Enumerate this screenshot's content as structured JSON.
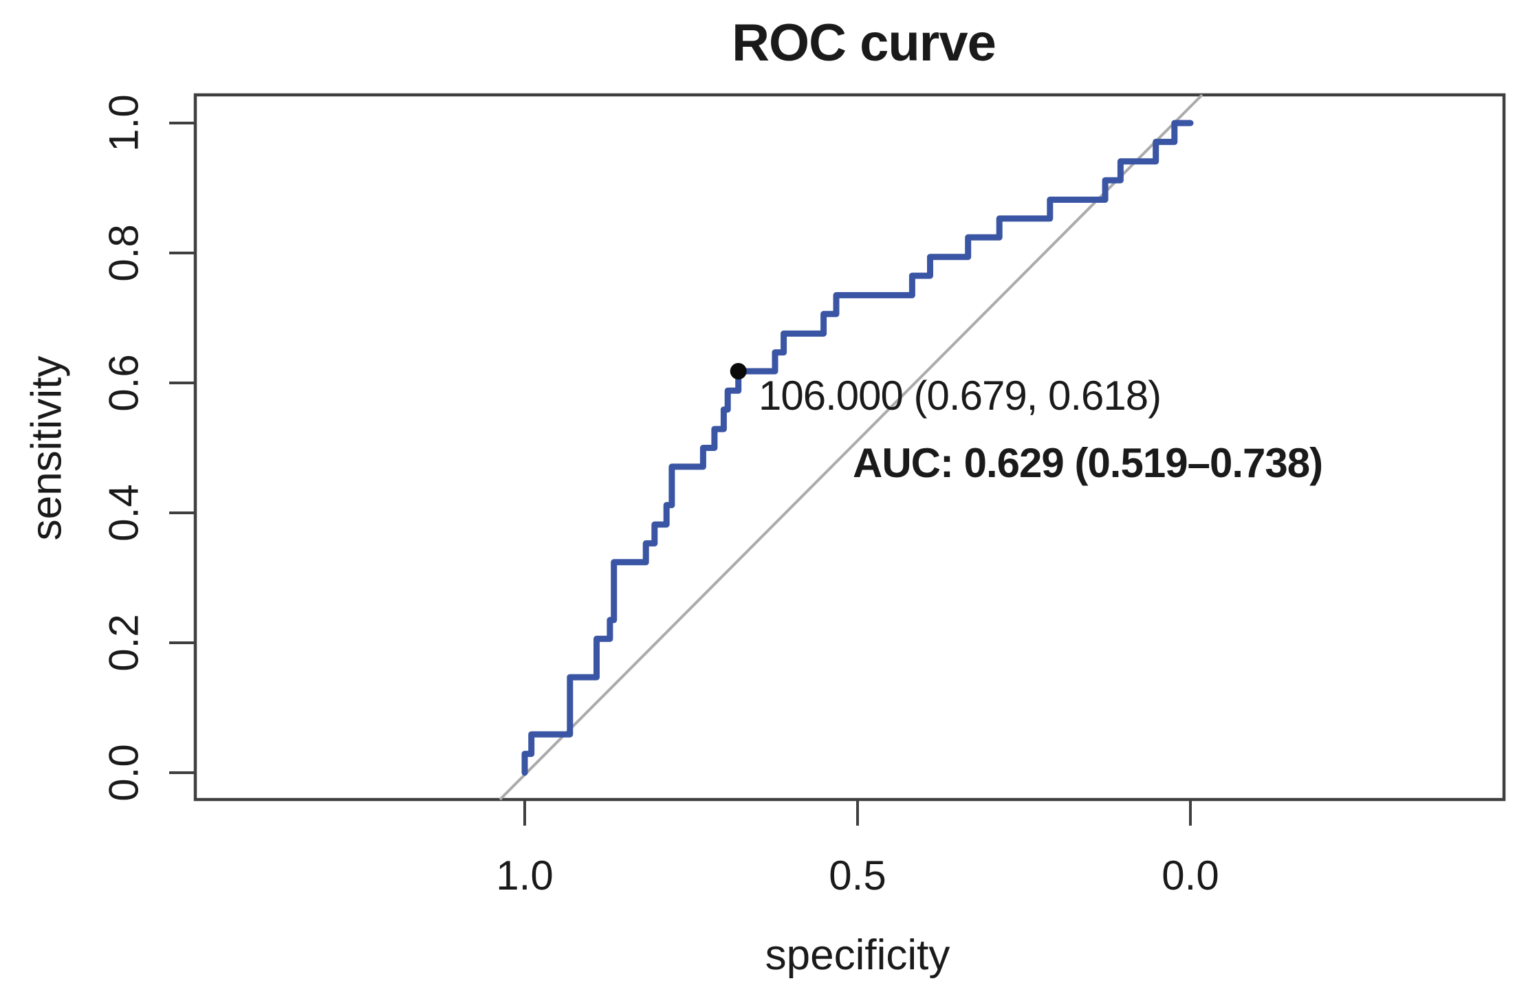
{
  "chart_data": {
    "type": "line",
    "subtype": "roc-step-curve",
    "title": "ROC curve",
    "xlabel": "specificity",
    "ylabel": "sensitivity",
    "x_axis": {
      "label": "specificity",
      "tick_labels": [
        "1.0",
        "0.5",
        "0.0"
      ],
      "tick_values": [
        1.0,
        0.5,
        0.0
      ],
      "range": [
        1.0,
        0.0
      ],
      "reversed": true
    },
    "y_axis": {
      "label": "sensitivity",
      "tick_labels": [
        "0.0",
        "0.2",
        "0.4",
        "0.6",
        "0.8",
        "1.0"
      ],
      "tick_values": [
        0.0,
        0.2,
        0.4,
        0.6,
        0.8,
        1.0
      ],
      "range": [
        0.0,
        1.0
      ]
    },
    "grid": false,
    "diagonal_reference_line": true,
    "series": [
      {
        "name": "ROC curve",
        "points_specificity_sensitivity": [
          [
            1.0,
            0.0
          ],
          [
            1.0,
            0.029
          ],
          [
            0.99,
            0.029
          ],
          [
            0.99,
            0.059
          ],
          [
            0.932,
            0.059
          ],
          [
            0.932,
            0.147
          ],
          [
            0.892,
            0.147
          ],
          [
            0.892,
            0.206
          ],
          [
            0.872,
            0.206
          ],
          [
            0.872,
            0.235
          ],
          [
            0.866,
            0.235
          ],
          [
            0.866,
            0.324
          ],
          [
            0.818,
            0.324
          ],
          [
            0.818,
            0.353
          ],
          [
            0.805,
            0.353
          ],
          [
            0.805,
            0.382
          ],
          [
            0.787,
            0.382
          ],
          [
            0.787,
            0.412
          ],
          [
            0.779,
            0.412
          ],
          [
            0.779,
            0.471
          ],
          [
            0.732,
            0.471
          ],
          [
            0.732,
            0.5
          ],
          [
            0.715,
            0.5
          ],
          [
            0.715,
            0.529
          ],
          [
            0.701,
            0.529
          ],
          [
            0.701,
            0.559
          ],
          [
            0.695,
            0.559
          ],
          [
            0.695,
            0.588
          ],
          [
            0.679,
            0.588
          ],
          [
            0.679,
            0.618
          ],
          [
            0.624,
            0.618
          ],
          [
            0.624,
            0.647
          ],
          [
            0.611,
            0.647
          ],
          [
            0.611,
            0.676
          ],
          [
            0.551,
            0.676
          ],
          [
            0.551,
            0.706
          ],
          [
            0.532,
            0.706
          ],
          [
            0.532,
            0.735
          ],
          [
            0.418,
            0.735
          ],
          [
            0.418,
            0.765
          ],
          [
            0.391,
            0.765
          ],
          [
            0.391,
            0.794
          ],
          [
            0.334,
            0.794
          ],
          [
            0.334,
            0.824
          ],
          [
            0.287,
            0.824
          ],
          [
            0.287,
            0.853
          ],
          [
            0.211,
            0.853
          ],
          [
            0.211,
            0.882
          ],
          [
            0.128,
            0.882
          ],
          [
            0.128,
            0.912
          ],
          [
            0.105,
            0.912
          ],
          [
            0.105,
            0.941
          ],
          [
            0.052,
            0.941
          ],
          [
            0.052,
            0.971
          ],
          [
            0.024,
            0.971
          ],
          [
            0.024,
            1.0
          ],
          [
            0.0,
            1.0
          ]
        ]
      }
    ],
    "marked_point": {
      "threshold": "106.000",
      "specificity": 0.679,
      "sensitivity": 0.618,
      "label": "106.000 (0.679, 0.618)"
    },
    "annotation": {
      "text": "AUC: 0.629 (0.519–0.738)",
      "auc": 0.629,
      "ci_low": 0.519,
      "ci_high": 0.738
    }
  },
  "colors": {
    "curve": "#3a55a4",
    "auc_text": "#2e50a2",
    "threshold_text": "#3d3d3d",
    "diagonal": "#ababab",
    "axis": "#3f3f3f",
    "tick_text": "#1a1a1a",
    "point": "#0a0a0a",
    "background": "#ffffff"
  }
}
